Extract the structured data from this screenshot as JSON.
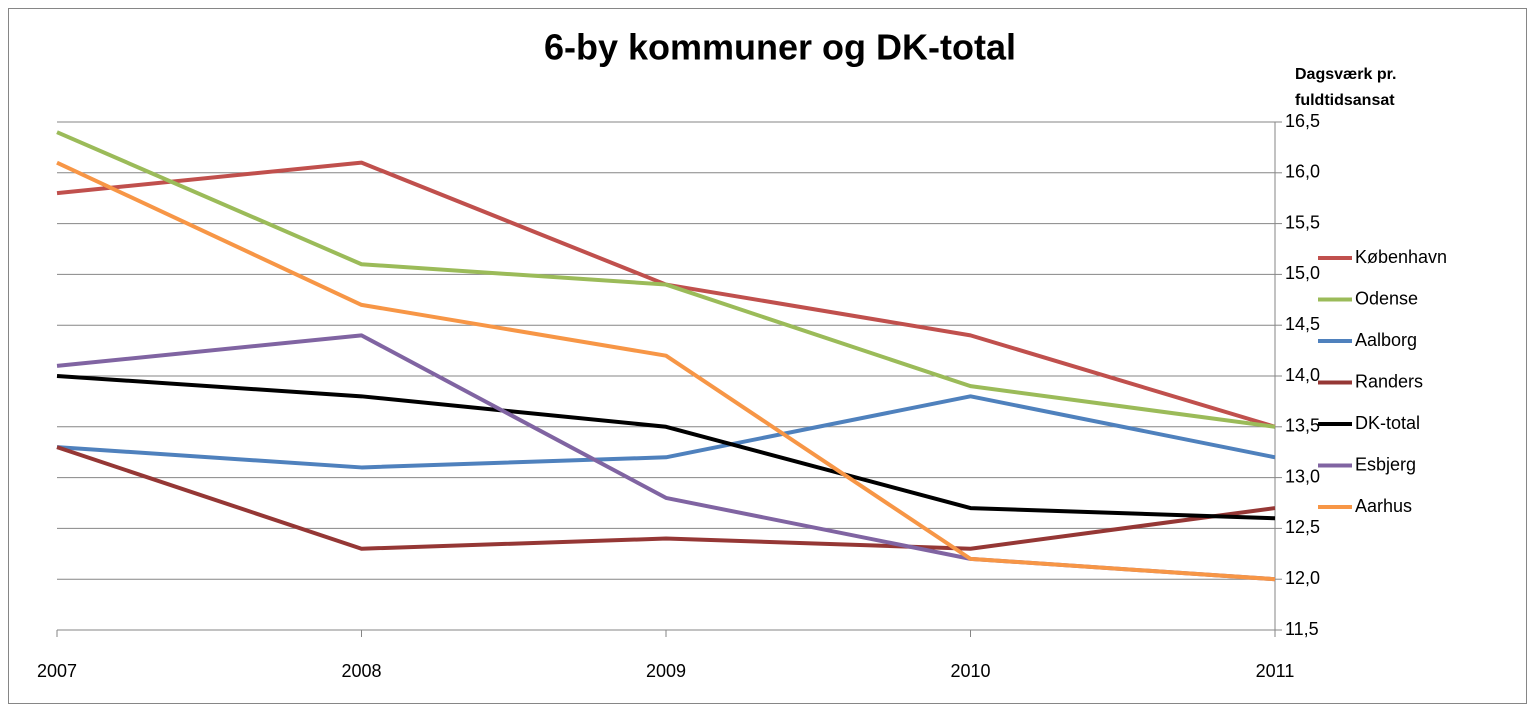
{
  "chart_data": {
    "type": "line",
    "title": "6-by kommuner og DK-total",
    "ylabel_lines": [
      "Dagsværk pr.",
      "fuldtidsansat"
    ],
    "categories": [
      "2007",
      "2008",
      "2009",
      "2010",
      "2011"
    ],
    "series": [
      {
        "name": "København",
        "color": "#c0504d",
        "values": [
          15.8,
          16.1,
          14.9,
          14.4,
          13.5
        ]
      },
      {
        "name": "Odense",
        "color": "#9bbb59",
        "values": [
          16.4,
          15.1,
          14.9,
          13.9,
          13.5
        ]
      },
      {
        "name": "Aalborg",
        "color": "#4f81bd",
        "values": [
          13.3,
          13.1,
          13.2,
          13.8,
          13.2
        ]
      },
      {
        "name": "Randers",
        "color": "#953735",
        "values": [
          13.3,
          12.3,
          12.4,
          12.3,
          12.7
        ]
      },
      {
        "name": "DK-total",
        "color": "#000000",
        "values": [
          14.0,
          13.8,
          13.5,
          12.7,
          12.6
        ]
      },
      {
        "name": "Esbjerg",
        "color": "#8064a2",
        "values": [
          14.1,
          14.4,
          12.8,
          12.2,
          12.0
        ]
      },
      {
        "name": "Aarhus",
        "color": "#f79646",
        "values": [
          16.1,
          14.7,
          14.2,
          12.2,
          12.0
        ]
      }
    ],
    "ylim": [
      11.5,
      16.5
    ],
    "yticks": [
      {
        "value": 11.5,
        "label": "11,5"
      },
      {
        "value": 12,
        "label": "12,0"
      },
      {
        "value": 12.5,
        "label": "12,5"
      },
      {
        "value": 13,
        "label": "13,0"
      },
      {
        "value": 13.5,
        "label": "13,5"
      },
      {
        "value": 14,
        "label": "14,0"
      },
      {
        "value": 14.5,
        "label": "14,5"
      },
      {
        "value": 15,
        "label": "15,0"
      },
      {
        "value": 15.5,
        "label": "15,5"
      },
      {
        "value": 16,
        "label": "16,0"
      },
      {
        "value": 16.5,
        "label": "16,5"
      }
    ],
    "yaxis_side": "right",
    "grid": true,
    "legend": "right"
  }
}
